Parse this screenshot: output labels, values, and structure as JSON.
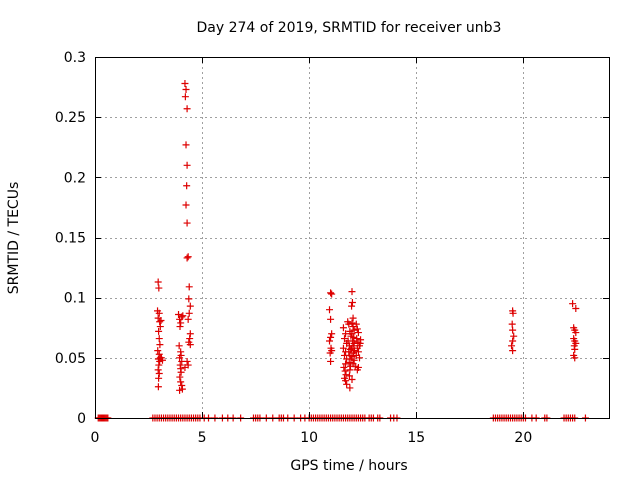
{
  "chart_data": {
    "type": "scatter",
    "title": "Day 274 of 2019, SRMTID for receiver unb3",
    "xlabel": "GPS time / hours",
    "ylabel": "SRMTID / TECUs",
    "xlim": [
      0,
      24
    ],
    "ylim": [
      0,
      0.3
    ],
    "xticks": [
      0,
      5,
      10,
      15,
      20
    ],
    "xtick_labels": [
      "0",
      "5",
      "10",
      "15",
      "20"
    ],
    "yticks": [
      0,
      0.05,
      0.1,
      0.15,
      0.2,
      0.25,
      0.3
    ],
    "ytick_labels": [
      "0",
      "0.05",
      "0.1",
      "0.15",
      "0.2",
      "0.25",
      "0.3"
    ],
    "grid": true,
    "marker": "+",
    "color": "#dd0000",
    "series": [
      {
        "name": "SRMTID",
        "points": [
          [
            2.95,
            0.113
          ],
          [
            2.98,
            0.108
          ],
          [
            2.92,
            0.089
          ],
          [
            3.0,
            0.087
          ],
          [
            2.95,
            0.083
          ],
          [
            3.02,
            0.08
          ],
          [
            3.05,
            0.076
          ],
          [
            2.97,
            0.072
          ],
          [
            3.0,
            0.066
          ],
          [
            3.03,
            0.061
          ],
          [
            2.93,
            0.056
          ],
          [
            3.0,
            0.053
          ],
          [
            3.05,
            0.05
          ],
          [
            2.96,
            0.049
          ],
          [
            3.02,
            0.047
          ],
          [
            2.98,
            0.044
          ],
          [
            2.95,
            0.04
          ],
          [
            3.0,
            0.037
          ],
          [
            2.97,
            0.033
          ],
          [
            2.96,
            0.026
          ],
          [
            3.1,
            0.05
          ],
          [
            3.15,
            0.048
          ],
          [
            3.08,
            0.081
          ],
          [
            3.9,
            0.086
          ],
          [
            3.95,
            0.082
          ],
          [
            4.05,
            0.084
          ],
          [
            4.0,
            0.079
          ],
          [
            3.97,
            0.076
          ],
          [
            4.1,
            0.085
          ],
          [
            3.93,
            0.06
          ],
          [
            4.0,
            0.055
          ],
          [
            4.02,
            0.052
          ],
          [
            3.95,
            0.05
          ],
          [
            4.05,
            0.047
          ],
          [
            3.98,
            0.044
          ],
          [
            4.0,
            0.041
          ],
          [
            4.02,
            0.038
          ],
          [
            3.96,
            0.034
          ],
          [
            4.0,
            0.03
          ],
          [
            4.05,
            0.027
          ],
          [
            4.08,
            0.024
          ],
          [
            3.95,
            0.023
          ],
          [
            4.2,
            0.278
          ],
          [
            4.25,
            0.273
          ],
          [
            4.22,
            0.267
          ],
          [
            4.3,
            0.257
          ],
          [
            4.25,
            0.227
          ],
          [
            4.3,
            0.21
          ],
          [
            4.28,
            0.193
          ],
          [
            4.25,
            0.177
          ],
          [
            4.3,
            0.162
          ],
          [
            4.35,
            0.134
          ],
          [
            4.3,
            0.133
          ],
          [
            4.4,
            0.109
          ],
          [
            4.38,
            0.099
          ],
          [
            4.45,
            0.093
          ],
          [
            4.4,
            0.087
          ],
          [
            4.35,
            0.082
          ],
          [
            4.45,
            0.07
          ],
          [
            4.42,
            0.066
          ],
          [
            4.38,
            0.063
          ],
          [
            4.45,
            0.061
          ],
          [
            4.3,
            0.047
          ],
          [
            4.35,
            0.044
          ],
          [
            4.2,
            0.042
          ],
          [
            11.0,
            0.104
          ],
          [
            11.05,
            0.103
          ],
          [
            10.95,
            0.09
          ],
          [
            11.0,
            0.082
          ],
          [
            11.05,
            0.07
          ],
          [
            11.0,
            0.067
          ],
          [
            10.95,
            0.064
          ],
          [
            11.02,
            0.058
          ],
          [
            11.05,
            0.056
          ],
          [
            10.98,
            0.054
          ],
          [
            11.0,
            0.047
          ],
          [
            11.6,
            0.075
          ],
          [
            11.7,
            0.07
          ],
          [
            11.65,
            0.066
          ],
          [
            11.75,
            0.062
          ],
          [
            11.6,
            0.058
          ],
          [
            11.7,
            0.055
          ],
          [
            11.65,
            0.052
          ],
          [
            11.75,
            0.049
          ],
          [
            11.7,
            0.045
          ],
          [
            11.62,
            0.042
          ],
          [
            11.68,
            0.039
          ],
          [
            11.72,
            0.036
          ],
          [
            11.65,
            0.033
          ],
          [
            11.7,
            0.031
          ],
          [
            11.75,
            0.028
          ],
          [
            11.8,
            0.08
          ],
          [
            11.85,
            0.078
          ],
          [
            11.9,
            0.072
          ],
          [
            11.95,
            0.068
          ],
          [
            11.82,
            0.064
          ],
          [
            11.88,
            0.06
          ],
          [
            11.92,
            0.057
          ],
          [
            11.85,
            0.055
          ],
          [
            11.9,
            0.052
          ],
          [
            11.95,
            0.049
          ],
          [
            11.87,
            0.046
          ],
          [
            11.93,
            0.043
          ],
          [
            11.9,
            0.04
          ],
          [
            11.88,
            0.035
          ],
          [
            11.9,
            0.025
          ],
          [
            12.0,
            0.105
          ],
          [
            12.02,
            0.096
          ],
          [
            11.98,
            0.093
          ],
          [
            12.05,
            0.083
          ],
          [
            12.0,
            0.079
          ],
          [
            12.05,
            0.076
          ],
          [
            12.1,
            0.073
          ],
          [
            12.0,
            0.07
          ],
          [
            12.08,
            0.067
          ],
          [
            12.03,
            0.064
          ],
          [
            12.1,
            0.062
          ],
          [
            12.05,
            0.06
          ],
          [
            11.98,
            0.058
          ],
          [
            12.12,
            0.056
          ],
          [
            12.07,
            0.054
          ],
          [
            12.0,
            0.051
          ],
          [
            12.1,
            0.048
          ],
          [
            12.05,
            0.045
          ],
          [
            12.15,
            0.043
          ],
          [
            12.0,
            0.032
          ],
          [
            12.2,
            0.078
          ],
          [
            12.25,
            0.074
          ],
          [
            12.3,
            0.071
          ],
          [
            12.22,
            0.066
          ],
          [
            12.28,
            0.063
          ],
          [
            12.35,
            0.06
          ],
          [
            12.25,
            0.058
          ],
          [
            12.3,
            0.055
          ],
          [
            12.2,
            0.052
          ],
          [
            12.35,
            0.05
          ],
          [
            12.3,
            0.042
          ],
          [
            12.25,
            0.04
          ],
          [
            12.4,
            0.065
          ],
          [
            12.38,
            0.062
          ],
          [
            19.5,
            0.089
          ],
          [
            19.52,
            0.087
          ],
          [
            19.48,
            0.078
          ],
          [
            19.5,
            0.073
          ],
          [
            19.55,
            0.068
          ],
          [
            19.5,
            0.064
          ],
          [
            19.45,
            0.06
          ],
          [
            19.5,
            0.056
          ],
          [
            22.3,
            0.095
          ],
          [
            22.45,
            0.091
          ],
          [
            22.35,
            0.075
          ],
          [
            22.4,
            0.073
          ],
          [
            22.45,
            0.071
          ],
          [
            22.35,
            0.066
          ],
          [
            22.4,
            0.064
          ],
          [
            22.45,
            0.062
          ],
          [
            22.38,
            0.06
          ],
          [
            22.4,
            0.057
          ],
          [
            22.35,
            0.052
          ],
          [
            22.4,
            0.05
          ]
        ],
        "zero_x": [
          0.15,
          0.2,
          0.25,
          0.3,
          0.35,
          0.4,
          0.45,
          0.5,
          0.55,
          0.6,
          2.7,
          2.8,
          2.9,
          3.0,
          3.1,
          3.2,
          3.3,
          3.4,
          3.5,
          3.6,
          3.7,
          3.8,
          3.9,
          4.0,
          4.1,
          4.2,
          4.3,
          4.4,
          4.5,
          4.6,
          4.7,
          4.8,
          4.9,
          5.1,
          5.3,
          5.6,
          5.95,
          6.2,
          6.45,
          6.8,
          7.4,
          7.5,
          7.6,
          7.7,
          8.0,
          8.3,
          8.6,
          8.7,
          8.8,
          9.0,
          9.3,
          9.6,
          9.8,
          10.0,
          10.1,
          10.2,
          10.3,
          10.4,
          10.5,
          10.6,
          10.7,
          10.8,
          10.9,
          11.0,
          11.1,
          11.2,
          11.3,
          11.4,
          11.5,
          11.6,
          11.7,
          11.8,
          11.9,
          12.0,
          12.1,
          12.2,
          12.3,
          12.4,
          12.5,
          12.6,
          12.8,
          12.9,
          13.0,
          13.2,
          13.3,
          13.8,
          13.95,
          14.1,
          18.6,
          18.7,
          18.8,
          18.9,
          19.0,
          19.1,
          19.2,
          19.3,
          19.4,
          19.5,
          19.6,
          19.7,
          19.8,
          19.9,
          20.0,
          20.1,
          20.4,
          20.6,
          21.0,
          21.1,
          21.9,
          22.0,
          22.1,
          22.2,
          22.3,
          22.4,
          22.9
        ]
      }
    ]
  }
}
